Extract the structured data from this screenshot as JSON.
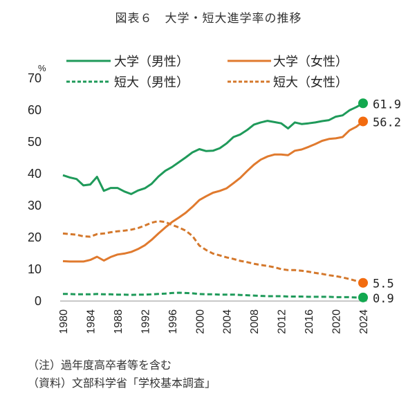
{
  "title": "図表６　大学・短大進学率の推移",
  "notes": [
    "（注）過年度高卒者等を含む",
    "（資料）文部科学省「学校基本調査」"
  ],
  "chart_data": {
    "type": "line",
    "title": "図表６　大学・短大進学率の推移",
    "xlabel": "",
    "ylabel": "%",
    "ylim": [
      0,
      70
    ],
    "xlim": [
      1980,
      2024
    ],
    "yticks": [
      0,
      10,
      20,
      30,
      40,
      50,
      60,
      70
    ],
    "xticks": [
      1980,
      1984,
      1988,
      1992,
      1996,
      2000,
      2004,
      2008,
      2012,
      2016,
      2020,
      2024
    ],
    "grid": false,
    "legend_position": "top",
    "x": [
      1980,
      1981,
      1982,
      1983,
      1984,
      1985,
      1986,
      1987,
      1988,
      1989,
      1990,
      1991,
      1992,
      1993,
      1994,
      1995,
      1996,
      1997,
      1998,
      1999,
      2000,
      2001,
      2002,
      2003,
      2004,
      2005,
      2006,
      2007,
      2008,
      2009,
      2010,
      2011,
      2012,
      2013,
      2014,
      2015,
      2016,
      2017,
      2018,
      2019,
      2020,
      2021,
      2022,
      2023,
      2024
    ],
    "series": [
      {
        "name": "大学（男性）",
        "color": "#1f9a5a",
        "end_color": "#12a84f",
        "style": "solid",
        "end_label": "61.9",
        "values": [
          39.3,
          38.6,
          38.1,
          36.1,
          36.4,
          38.8,
          34.4,
          35.3,
          35.3,
          34.2,
          33.4,
          34.5,
          35.2,
          36.6,
          38.9,
          40.7,
          41.9,
          43.4,
          44.9,
          46.5,
          47.5,
          46.9,
          47.0,
          47.8,
          49.3,
          51.3,
          52.1,
          53.5,
          55.2,
          55.9,
          56.4,
          56.0,
          55.6,
          54.0,
          55.9,
          55.4,
          55.6,
          55.9,
          56.3,
          56.6,
          57.7,
          58.1,
          59.7,
          60.7,
          61.9
        ]
      },
      {
        "name": "大学（女性）",
        "color": "#e07a2e",
        "end_color": "#f26b0f",
        "style": "solid",
        "end_label": "56.2",
        "values": [
          12.3,
          12.2,
          12.2,
          12.2,
          12.7,
          13.7,
          12.5,
          13.6,
          14.4,
          14.7,
          15.2,
          16.1,
          17.3,
          19.0,
          21.0,
          22.9,
          24.6,
          26.0,
          27.5,
          29.4,
          31.5,
          32.7,
          33.8,
          34.4,
          35.2,
          36.8,
          38.5,
          40.6,
          42.6,
          44.2,
          45.2,
          45.8,
          45.8,
          45.6,
          47.0,
          47.4,
          48.2,
          49.1,
          50.1,
          50.7,
          50.9,
          51.3,
          53.4,
          54.5,
          56.2
        ]
      },
      {
        "name": "短大（男性）",
        "color": "#1f9a5a",
        "end_color": "#12a84f",
        "style": "dashed",
        "end_label": "0.9",
        "values": [
          2.0,
          2.0,
          1.9,
          1.9,
          1.9,
          2.0,
          1.9,
          1.9,
          1.8,
          1.8,
          1.7,
          1.8,
          1.8,
          1.9,
          2.0,
          2.1,
          2.3,
          2.4,
          2.3,
          2.2,
          2.0,
          1.9,
          1.9,
          1.8,
          1.8,
          1.8,
          1.7,
          1.6,
          1.5,
          1.4,
          1.3,
          1.3,
          1.3,
          1.2,
          1.2,
          1.2,
          1.1,
          1.1,
          1.1,
          1.1,
          1.0,
          1.0,
          1.0,
          0.9,
          0.9
        ]
      },
      {
        "name": "短大（女性）",
        "color": "#d4782c",
        "end_color": "#f26b0f",
        "style": "dashed",
        "end_label": "5.5",
        "values": [
          21.0,
          20.8,
          20.6,
          20.1,
          20.0,
          20.8,
          21.0,
          21.4,
          21.7,
          21.9,
          22.2,
          22.7,
          23.5,
          24.4,
          24.9,
          24.6,
          23.7,
          22.9,
          21.9,
          20.2,
          17.2,
          15.8,
          14.7,
          14.1,
          13.5,
          13.0,
          12.4,
          12.0,
          11.5,
          11.1,
          10.8,
          10.4,
          9.8,
          9.5,
          9.5,
          9.3,
          9.0,
          8.6,
          8.3,
          7.9,
          7.6,
          7.2,
          6.7,
          6.1,
          5.5
        ]
      }
    ],
    "unit_label": "%",
    "legend": [
      {
        "label": "大学（男性）",
        "series": 0
      },
      {
        "label": "大学（女性）",
        "series": 1
      },
      {
        "label": "短大（男性）",
        "series": 2
      },
      {
        "label": "短大（女性）",
        "series": 3
      }
    ]
  }
}
